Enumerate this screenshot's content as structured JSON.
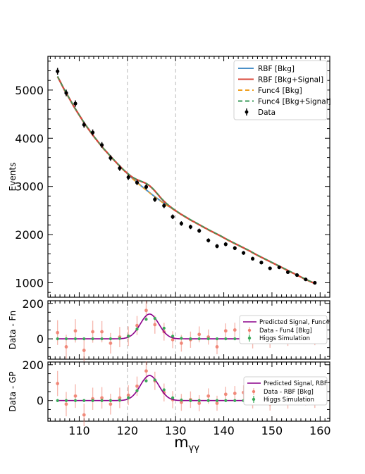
{
  "chart_data": [
    {
      "type": "line",
      "ylabel": "Events",
      "xlim": [
        103.5,
        162
      ],
      "ylim": [
        700,
        5700
      ],
      "yticks": [
        1000,
        2000,
        3000,
        4000,
        5000
      ],
      "vlines": [
        120,
        130
      ],
      "legend": {
        "placement": "top-right",
        "entries": [
          "RBF [Bkg]",
          "RBF [Bkg+Signal]",
          "Func4 [Bkg]",
          "Func4 [Bkg+Signal]",
          "Data"
        ]
      },
      "series": [
        {
          "name": "RBF [Bkg]",
          "color": "#4a90c8",
          "style": "solid"
        },
        {
          "name": "RBF [Bkg+Signal]",
          "color": "#d9473a",
          "style": "solid"
        },
        {
          "name": "Func4 [Bkg]",
          "color": "#f0a020",
          "style": "dashed"
        },
        {
          "name": "Func4 [Bkg+Signal]",
          "color": "#3a9a5a",
          "style": "dashed"
        }
      ],
      "background_model": {
        "x": [
          105.5,
          107,
          109,
          111,
          113,
          115,
          117,
          119,
          121,
          123,
          125,
          127,
          129,
          131,
          133,
          135,
          137,
          139,
          141,
          143,
          145,
          147,
          149,
          151,
          153,
          155,
          157,
          159
        ],
        "y": [
          5280,
          4990,
          4640,
          4320,
          4040,
          3790,
          3570,
          3360,
          3170,
          3000,
          2840,
          2690,
          2560,
          2430,
          2310,
          2200,
          2090,
          1990,
          1880,
          1780,
          1680,
          1570,
          1470,
          1370,
          1270,
          1170,
          1070,
          980
        ]
      },
      "signal_peak": {
        "mean": 124.6,
        "sigma": 1.9,
        "amplitude": 140
      },
      "data": {
        "name": "Data",
        "x": [
          105.5,
          107.3,
          109.2,
          111.0,
          112.8,
          114.7,
          116.5,
          118.4,
          120.2,
          122.0,
          123.9,
          125.7,
          127.6,
          129.4,
          131.2,
          133.1,
          134.9,
          136.8,
          138.6,
          140.4,
          142.3,
          144.1,
          146.0,
          147.8,
          149.6,
          151.5,
          153.3,
          155.2,
          157.0,
          158.9
        ],
        "y": [
          5390,
          4940,
          4720,
          4280,
          4120,
          3860,
          3590,
          3380,
          3190,
          3080,
          2990,
          2730,
          2600,
          2370,
          2230,
          2160,
          2080,
          1880,
          1760,
          1800,
          1720,
          1620,
          1500,
          1420,
          1300,
          1320,
          1220,
          1160,
          1070,
          1000
        ],
        "yerr": [
          70,
          68,
          66,
          63,
          62,
          60,
          58,
          57,
          55,
          54,
          53,
          51,
          50,
          48,
          47,
          46,
          45,
          43,
          42,
          42,
          41,
          40,
          39,
          37,
          36,
          36,
          35,
          34,
          33,
          31
        ]
      }
    },
    {
      "type": "scatter",
      "ylabel": "Data - Fn",
      "xlim": [
        103.5,
        162
      ],
      "ylim": [
        -115,
        215
      ],
      "yticks": [
        0,
        200
      ],
      "vlines": [
        120,
        130
      ],
      "legend": {
        "placement": "right",
        "entries": [
          "Predicted Signal, Func4",
          "Data - Fun4 [Bkg]",
          "Higgs Simulation"
        ]
      },
      "predicted_signal": {
        "name": "Predicted Signal, Func4",
        "color": "#8b008b",
        "mean": 124.6,
        "sigma": 1.9,
        "amplitude": 140
      },
      "residuals": {
        "name": "Data - Fun4 [Bkg]",
        "color": "#f08070",
        "x": [
          105.5,
          107.3,
          109.2,
          111.0,
          112.8,
          114.7,
          116.5,
          118.4,
          120.2,
          122.0,
          123.9,
          125.7,
          127.6,
          129.4,
          131.2,
          133.1,
          134.9,
          136.8,
          138.6,
          140.4,
          142.3,
          144.1,
          146.0,
          147.8,
          149.6,
          151.5,
          153.3,
          155.2,
          157.0,
          158.9
        ],
        "y": [
          35,
          -45,
          45,
          -65,
          40,
          40,
          -25,
          10,
          15,
          75,
          160,
          80,
          40,
          -5,
          -25,
          -5,
          25,
          10,
          -45,
          45,
          50,
          65,
          -15,
          35,
          -15,
          15,
          -5,
          20,
          10,
          -5
        ],
        "yerr": [
          70,
          68,
          66,
          63,
          62,
          60,
          58,
          57,
          55,
          54,
          53,
          51,
          50,
          48,
          47,
          46,
          45,
          43,
          42,
          42,
          41,
          40,
          39,
          37,
          36,
          36,
          35,
          34,
          33,
          31
        ]
      },
      "higgs_simulation": {
        "name": "Higgs Simulation",
        "color": "#3aaa5a",
        "x": [
          105.5,
          107.3,
          109.2,
          111.0,
          112.8,
          114.7,
          116.5,
          118.4,
          120.2,
          122.0,
          123.9,
          125.7,
          127.6,
          129.4,
          131.2,
          133.1,
          134.9,
          136.8,
          138.6,
          140.4,
          142.3,
          144.1,
          146.0,
          147.8,
          149.6,
          151.5,
          153.3,
          155.2,
          157.0,
          158.9
        ],
        "y": [
          0,
          0,
          0,
          0,
          0,
          0,
          0,
          2,
          15,
          55,
          110,
          115,
          60,
          15,
          3,
          0,
          0,
          0,
          0,
          0,
          0,
          0,
          0,
          0,
          0,
          0,
          0,
          0,
          0,
          0
        ]
      }
    },
    {
      "type": "scatter",
      "ylabel": "Data - GP",
      "xlabel": "m",
      "xlabel_sub": "γγ",
      "xlim": [
        103.5,
        162
      ],
      "ylim": [
        -115,
        215
      ],
      "yticks": [
        0,
        200
      ],
      "xticks": [
        110,
        120,
        130,
        140,
        150,
        160
      ],
      "vlines": [
        120,
        130
      ],
      "legend": {
        "placement": "right",
        "entries": [
          "Predicted Signal, RBF",
          "Data - RBF [Bkg]",
          "Higgs Simulation"
        ]
      },
      "predicted_signal": {
        "name": "Predicted Signal, RBF",
        "color": "#8b008b",
        "mean": 124.6,
        "sigma": 1.9,
        "amplitude": 140
      },
      "residuals": {
        "name": "Data - RBF [Bkg]",
        "color": "#f08070",
        "x": [
          105.5,
          107.3,
          109.2,
          111.0,
          112.8,
          114.7,
          116.5,
          118.4,
          120.2,
          122.0,
          123.9,
          125.7,
          127.6,
          129.4,
          131.2,
          133.1,
          134.9,
          136.8,
          138.6,
          140.4,
          142.3,
          144.1,
          146.0,
          147.8,
          149.6,
          151.5,
          153.3,
          155.2,
          157.0,
          158.9
        ],
        "y": [
          95,
          -20,
          25,
          -80,
          10,
          15,
          -20,
          15,
          30,
          80,
          165,
          110,
          45,
          5,
          -10,
          5,
          -15,
          25,
          -15,
          35,
          40,
          45,
          -5,
          25,
          -20,
          10,
          -10,
          15,
          5,
          -10
        ],
        "yerr": [
          70,
          68,
          66,
          63,
          62,
          60,
          58,
          57,
          55,
          54,
          53,
          51,
          50,
          48,
          47,
          46,
          45,
          43,
          42,
          42,
          41,
          40,
          39,
          37,
          36,
          36,
          35,
          34,
          33,
          31
        ]
      },
      "higgs_simulation": {
        "name": "Higgs Simulation",
        "color": "#3aaa5a",
        "x": [
          105.5,
          107.3,
          109.2,
          111.0,
          112.8,
          114.7,
          116.5,
          118.4,
          120.2,
          122.0,
          123.9,
          125.7,
          127.6,
          129.4,
          131.2,
          133.1,
          134.9,
          136.8,
          138.6,
          140.4,
          142.3,
          144.1,
          146.0,
          147.8,
          149.6,
          151.5,
          153.3,
          155.2,
          157.0,
          158.9
        ],
        "y": [
          0,
          0,
          0,
          0,
          0,
          0,
          0,
          2,
          15,
          55,
          110,
          115,
          60,
          15,
          3,
          0,
          0,
          0,
          0,
          0,
          0,
          0,
          0,
          0,
          0,
          0,
          0,
          0,
          0,
          0
        ]
      }
    }
  ]
}
